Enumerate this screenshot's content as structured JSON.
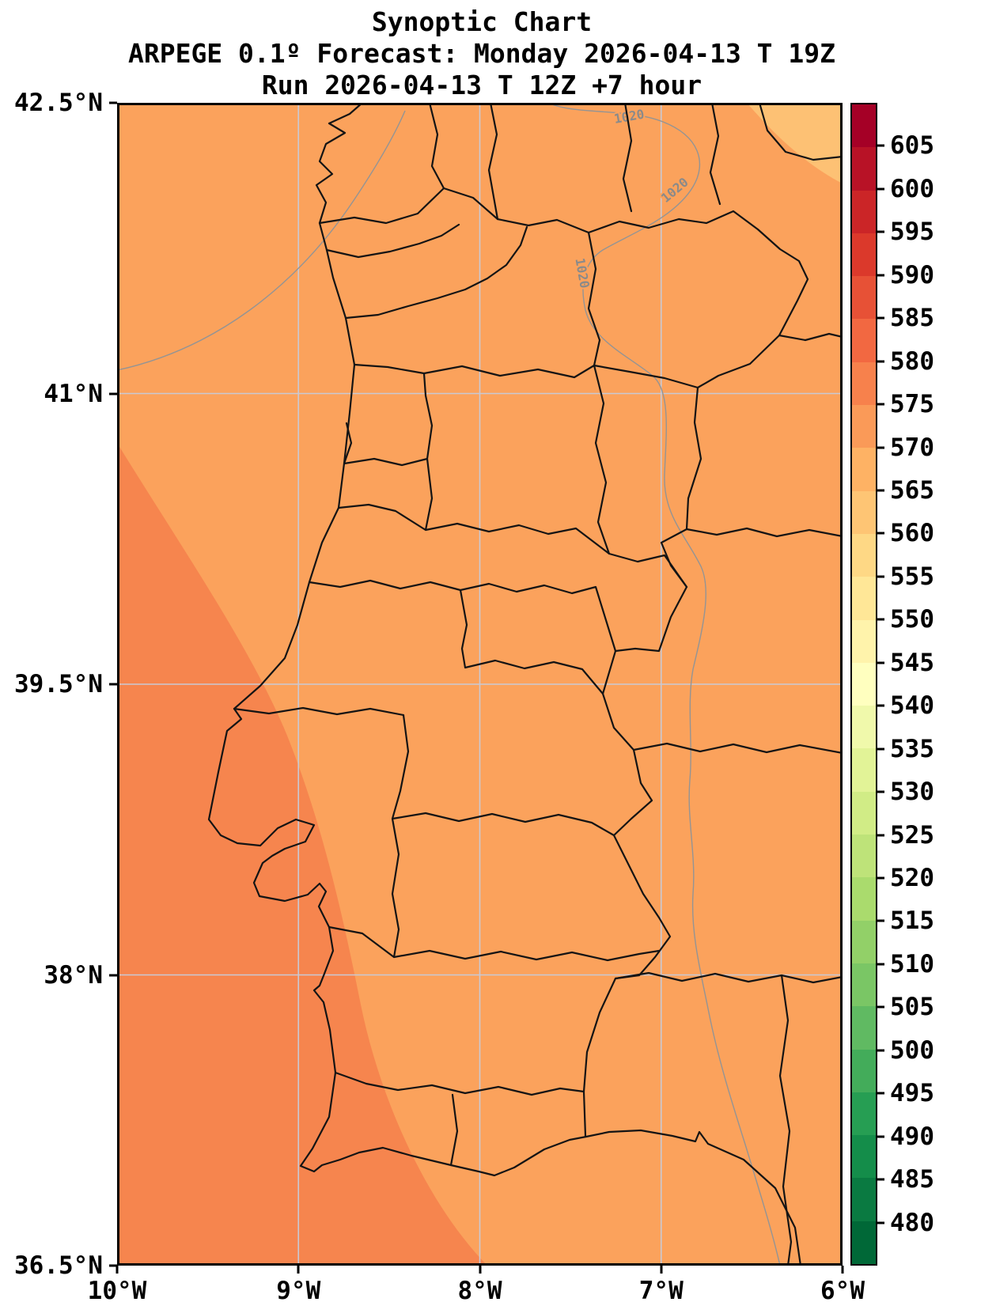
{
  "title": {
    "line1": "Synoptic Chart",
    "line2": "ARPEGE 0.1º Forecast: Monday 2026-04-13 T 19Z",
    "line3": "Run 2026-04-13 T 12Z +7 hour"
  },
  "axes": {
    "y_tick_labels_top_to_bottom": [
      "42.5°N",
      "41°N",
      "39.5°N",
      "38°N",
      "36.5°N"
    ],
    "x_tick_labels_left_to_right": [
      "10°W",
      "9°W",
      "8°W",
      "7°W",
      "6°W"
    ]
  },
  "colorbar": {
    "tick_labels_top_to_bottom": [
      "605",
      "600",
      "595",
      "590",
      "585",
      "580",
      "575",
      "570",
      "565",
      "560",
      "555",
      "550",
      "545",
      "540",
      "535",
      "530",
      "525",
      "520",
      "515",
      "510",
      "505",
      "500",
      "495",
      "490",
      "485",
      "480"
    ],
    "segment_colors_top_to_bottom": [
      "#a50026",
      "#b81226",
      "#cb2527",
      "#db392b",
      "#e75136",
      "#f26841",
      "#f7814c",
      "#fa9a58",
      "#feb264",
      "#fec574",
      "#fed885",
      "#ffe797",
      "#fff3ab",
      "#ffffbf",
      "#f0f9ab",
      "#e2f397",
      "#d1ec86",
      "#bee379",
      "#aadb6d",
      "#92d068",
      "#7ac665",
      "#60ba62",
      "#43ac5a",
      "#269e53",
      "#148d4a",
      "#0a7a41",
      "#006837"
    ]
  },
  "map": {
    "fill_main": "#fba25c",
    "fill_southwest": "#f6854e",
    "fill_topright": "#fdc174",
    "boundary_color": "#141414",
    "contour_color": "#949494",
    "contour_label_color": "#8a8a8a",
    "grid_color": "#c9c9d4",
    "contour_label": "1020"
  },
  "chart_data": {
    "type": "map-contour",
    "title": "Synoptic Chart",
    "model": "ARPEGE 0.1º",
    "forecast_valid": "Monday 2026-04-13 T 19Z",
    "run": "2026-04-13 T 12Z",
    "lead": "+7 hour",
    "x_axis_deg_w": [
      10,
      9,
      8,
      7,
      6
    ],
    "y_axis_deg_n": [
      42.5,
      41,
      39.5,
      38,
      36.5
    ],
    "colorbar_levels": [
      480,
      485,
      490,
      495,
      500,
      505,
      510,
      515,
      520,
      525,
      530,
      535,
      540,
      545,
      550,
      555,
      560,
      565,
      570,
      575,
      580,
      585,
      590,
      595,
      600,
      605
    ],
    "isobar_contour_labels": [
      "1020",
      "1020",
      "1020"
    ],
    "region": "Portugal and western Iberia"
  }
}
